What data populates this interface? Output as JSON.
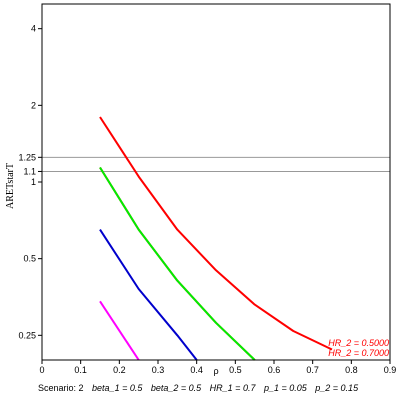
{
  "chart_data": {
    "type": "line",
    "title": "",
    "xlabel": "ρ",
    "ylabel": "ARETstarT",
    "xlim": [
      0,
      0.9
    ],
    "ylim": [
      0.2,
      5
    ],
    "y_scale": "log",
    "x_ticks": [
      0,
      0.1,
      0.2,
      0.3,
      0.4,
      0.5,
      0.6,
      0.7,
      0.8,
      0.9
    ],
    "y_ticks": [
      0.25,
      0.5,
      1,
      1.1,
      1.25,
      2,
      4
    ],
    "y_tick_labels": [
      "0.25",
      "0.5",
      "1",
      "1.1",
      "1.25",
      "2",
      "4"
    ],
    "reference_lines": [
      1.25,
      1.1
    ],
    "reference_color": "#999999",
    "series": [
      {
        "name": "HR_2 = 0.5000",
        "color": "#ff0000",
        "x": [
          0.15,
          0.25,
          0.35,
          0.45,
          0.55,
          0.65,
          0.75
        ],
        "y": [
          1.8,
          1.05,
          0.65,
          0.45,
          0.33,
          0.26,
          0.22
        ]
      },
      {
        "name": "HR_2 = 0.7000",
        "color": "#ff0000",
        "x": [
          0.15,
          0.25,
          0.35,
          0.45,
          0.55
        ],
        "y": [
          1.14,
          0.65,
          0.41,
          0.28,
          0.19
        ]
      },
      {
        "name": "",
        "color": "#00ee00",
        "x": [
          0.15,
          0.25,
          0.35,
          0.45,
          0.55
        ],
        "y": [
          1.14,
          0.65,
          0.41,
          0.28,
          0.19
        ]
      },
      {
        "name": "",
        "color": "#0000cc",
        "x": [
          0.15,
          0.25,
          0.35,
          0.4
        ],
        "y": [
          0.65,
          0.38,
          0.25,
          0.19
        ]
      },
      {
        "name": "",
        "color": "#ff00ff",
        "x": [
          0.15,
          0.25
        ],
        "y": [
          0.34,
          0.19
        ]
      }
    ],
    "labels": [
      {
        "text": "HR_2 = 0.5000",
        "color": "#ff0000"
      },
      {
        "text": "HR_2 = 0.7000",
        "color": "#ff0000"
      }
    ]
  },
  "footer": {
    "scenario": "Scenario: 2",
    "params": [
      "beta_1 = 0.5",
      "beta_2 = 0.5",
      "HR_1 = 0.7",
      "p_1 = 0.05",
      "p_2 = 0.15"
    ]
  }
}
